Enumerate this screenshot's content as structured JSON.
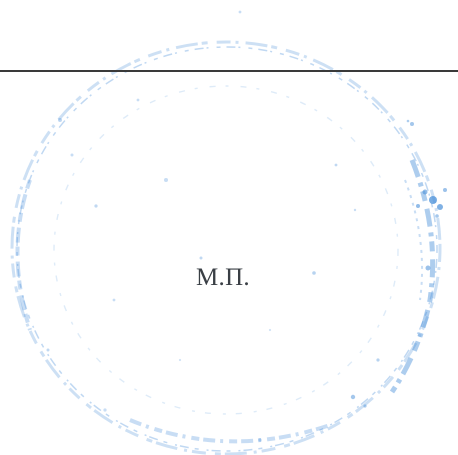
{
  "document": {
    "stamp_label": "М.П."
  },
  "colors": {
    "stamp_ink": "#4a90d9",
    "rule": "#3a3a3a",
    "text": "#3a3f45",
    "background": "#ffffff"
  }
}
